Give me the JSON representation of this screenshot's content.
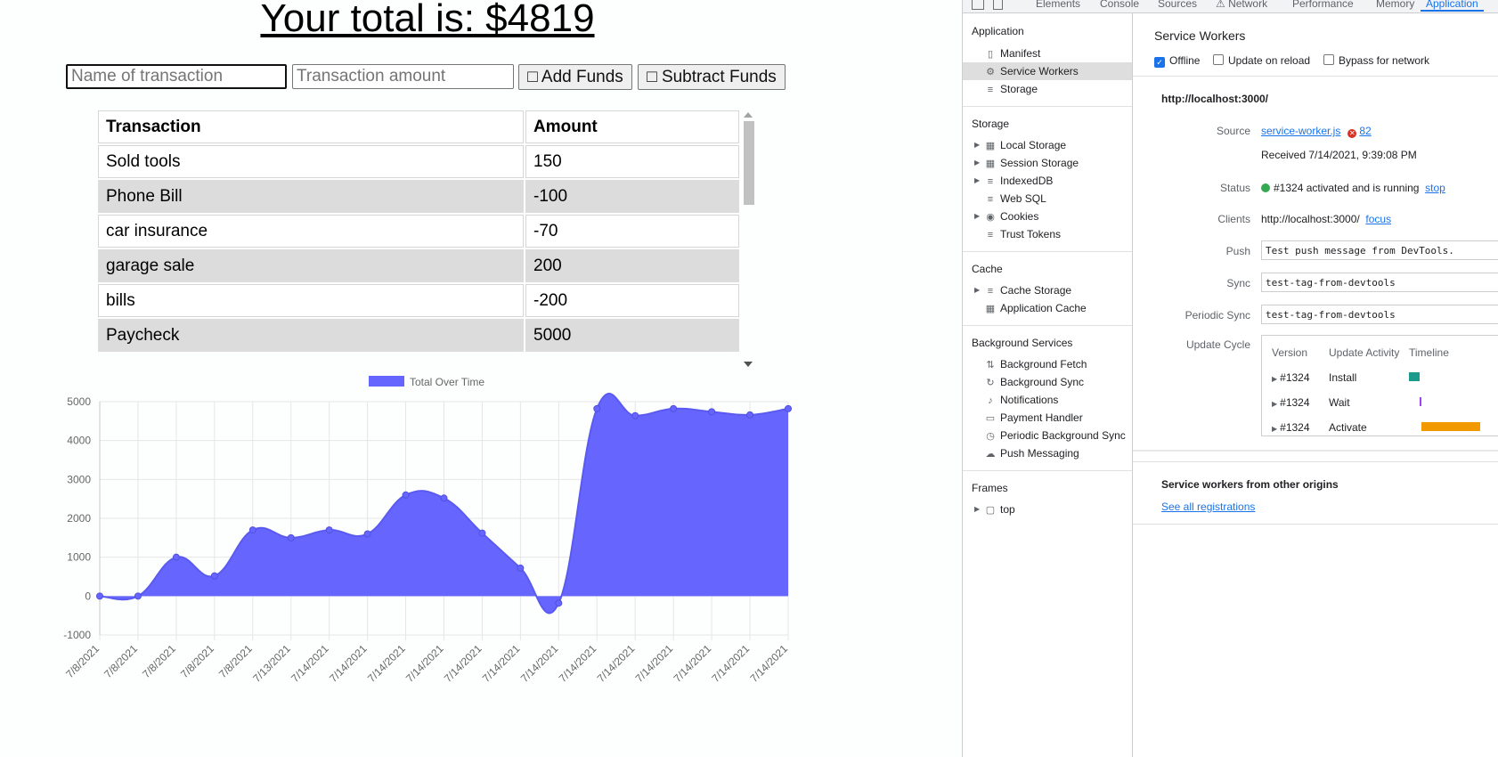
{
  "app": {
    "total_text": "Your total is: $4819",
    "name_placeholder": "Name of transaction",
    "amount_placeholder": "Transaction amount",
    "add_button": "□ Add Funds",
    "subtract_button": "□ Subtract Funds",
    "table": {
      "headers": [
        "Transaction",
        "Amount"
      ],
      "rows": [
        {
          "name": "Sold tools",
          "amount": "150"
        },
        {
          "name": "Phone Bill",
          "amount": "-100"
        },
        {
          "name": "car insurance",
          "amount": "-70"
        },
        {
          "name": "garage sale",
          "amount": "200"
        },
        {
          "name": "bills",
          "amount": "-200"
        },
        {
          "name": "Paycheck",
          "amount": "5000"
        }
      ]
    }
  },
  "chart_data": {
    "type": "area",
    "legend": "Total Over Time",
    "legend_position": "top",
    "color": "#6666ff",
    "x": [
      "7/8/2021",
      "7/8/2021",
      "7/8/2021",
      "7/8/2021",
      "7/8/2021",
      "7/13/2021",
      "7/14/2021",
      "7/14/2021",
      "7/14/2021",
      "7/14/2021",
      "7/14/2021",
      "7/14/2021",
      "7/14/2021",
      "7/14/2021",
      "7/14/2021",
      "7/14/2021",
      "7/14/2021",
      "7/14/2021",
      "7/14/2021"
    ],
    "values": [
      0,
      0,
      1000,
      520,
      1700,
      1500,
      1700,
      1600,
      2600,
      2520,
      1620,
      720,
      -180,
      4820,
      4640,
      4820,
      4740,
      4660,
      4820
    ],
    "ylim": [
      -1000,
      5000
    ],
    "yticks": [
      5000,
      4000,
      3000,
      2000,
      1000,
      0,
      -1000
    ],
    "grid": true
  },
  "devtools": {
    "tabs": [
      "Elements",
      "Console",
      "Sources",
      "⚠ Network",
      "Performance",
      "Memory",
      "Application"
    ],
    "active_tab": "Application",
    "sidebar": {
      "application_header": "Application",
      "application_items": [
        "Manifest",
        "Service Workers",
        "Storage"
      ],
      "storage_header": "Storage",
      "storage_items": [
        "Local Storage",
        "Session Storage",
        "IndexedDB",
        "Web SQL",
        "Cookies",
        "Trust Tokens"
      ],
      "cache_header": "Cache",
      "cache_items": [
        "Cache Storage",
        "Application Cache"
      ],
      "background_header": "Background Services",
      "background_items": [
        "Background Fetch",
        "Background Sync",
        "Notifications",
        "Payment Handler",
        "Periodic Background Sync",
        "Push Messaging"
      ],
      "frames_header": "Frames",
      "frames_items": [
        "top"
      ]
    },
    "panel": {
      "title": "Service Workers",
      "offline_label": "Offline",
      "update_on_reload_label": "Update on reload",
      "bypass_label": "Bypass for network",
      "origin": "http://localhost:3000/",
      "source_label": "Source",
      "source_file": "service-worker.js",
      "error_count": "82",
      "received": "Received 7/14/2021, 9:39:08 PM",
      "status_label": "Status",
      "status_text": "#1324 activated and is running",
      "stop_link": "stop",
      "clients_label": "Clients",
      "clients_value": "http://localhost:3000/",
      "focus_link": "focus",
      "push_label": "Push",
      "push_value": "Test push message from DevTools.",
      "sync_label": "Sync",
      "sync_value": "test-tag-from-devtools",
      "periodic_label": "Periodic Sync",
      "periodic_value": "test-tag-from-devtools",
      "update_cycle_label": "Update Cycle",
      "cycle_headers": [
        "Version",
        "Update Activity",
        "Timeline"
      ],
      "cycle_rows": [
        {
          "version": "#1324",
          "activity": "Install"
        },
        {
          "version": "#1324",
          "activity": "Wait"
        },
        {
          "version": "#1324",
          "activity": "Activate"
        }
      ],
      "other_origins_title": "Service workers from other origins",
      "see_all_link": "See all registrations"
    }
  }
}
